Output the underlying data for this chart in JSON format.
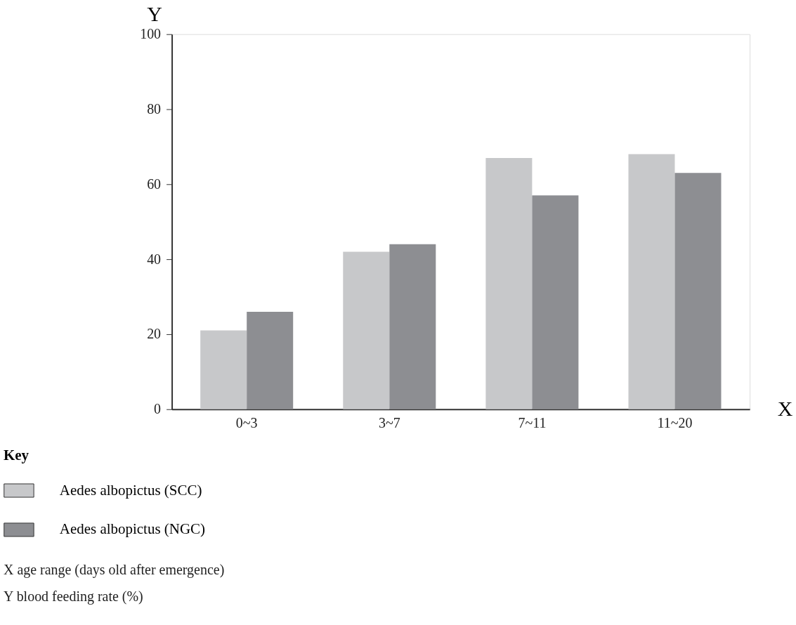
{
  "chart_data": {
    "type": "bar",
    "xlabel": "X",
    "ylabel": "Y",
    "legend_title": "Key",
    "categories": [
      "0~3",
      "3~7",
      "7~11",
      "11~20"
    ],
    "series": [
      {
        "name": "Aedes albopictus (SCC)",
        "color": "#c7c8ca",
        "values": [
          21,
          42,
          67,
          68
        ]
      },
      {
        "name": "Aedes albopictus (NGC)",
        "color": "#8d8e92",
        "values": [
          26,
          44,
          57,
          63
        ]
      }
    ],
    "ylim": [
      0,
      100
    ],
    "yticks": [
      0,
      20,
      40,
      60,
      80,
      100
    ],
    "grid": false,
    "legend": "bottom left",
    "annotations": [
      "X        age range (days old after emergence)",
      "Y        blood feeding rate (%)"
    ]
  }
}
